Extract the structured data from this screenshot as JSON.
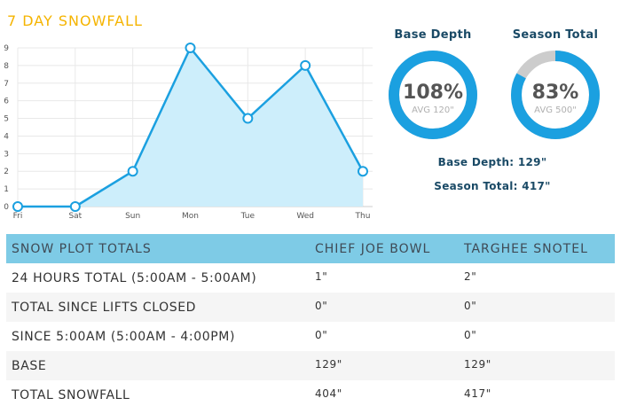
{
  "title": "7 DAY SNOWFALL",
  "chart_data": {
    "type": "area",
    "categories": [
      "Fri",
      "Sat",
      "Sun",
      "Mon",
      "Tue",
      "Wed",
      "Thu"
    ],
    "series": [
      {
        "values": [
          0,
          0,
          2,
          9,
          5,
          8,
          2
        ]
      }
    ],
    "ylim": [
      0,
      9
    ],
    "yticks": [
      0,
      1,
      2,
      3,
      4,
      5,
      6,
      7,
      8,
      9
    ],
    "grid": true,
    "colors": {
      "line": "#1ba0e0",
      "fill": "#cdeefb",
      "grid": "#e8e8e8"
    }
  },
  "gauges": {
    "base": {
      "label": "Base Depth",
      "pct": "108%",
      "fraction": 1.0,
      "avg": "AVG 120\""
    },
    "season": {
      "label": "Season Total",
      "pct": "83%",
      "fraction": 0.83,
      "avg": "AVG 500\""
    },
    "colors": {
      "fill": "#1ba0e0",
      "track": "#cccccc"
    }
  },
  "stats": {
    "base_depth": "Base Depth: 129\"",
    "season_total": "Season Total: 417\""
  },
  "table": {
    "headers": [
      "SNOW PLOT TOTALS",
      "CHIEF JOE BOWL",
      "TARGHEE SNOTEL"
    ],
    "rows": [
      {
        "label": "24 HOURS TOTAL (5:00AM - 5:00AM)",
        "chief": "1\"",
        "targhee": "2\""
      },
      {
        "label": "TOTAL SINCE LIFTS CLOSED",
        "chief": "0\"",
        "targhee": "0\""
      },
      {
        "label": "SINCE 5:00AM (5:00AM - 4:00PM)",
        "chief": "0\"",
        "targhee": "0\""
      },
      {
        "label": "BASE",
        "chief": "129\"",
        "targhee": "129\""
      },
      {
        "label": "TOTAL SNOWFALL",
        "chief": "404\"",
        "targhee": "417\""
      }
    ]
  }
}
